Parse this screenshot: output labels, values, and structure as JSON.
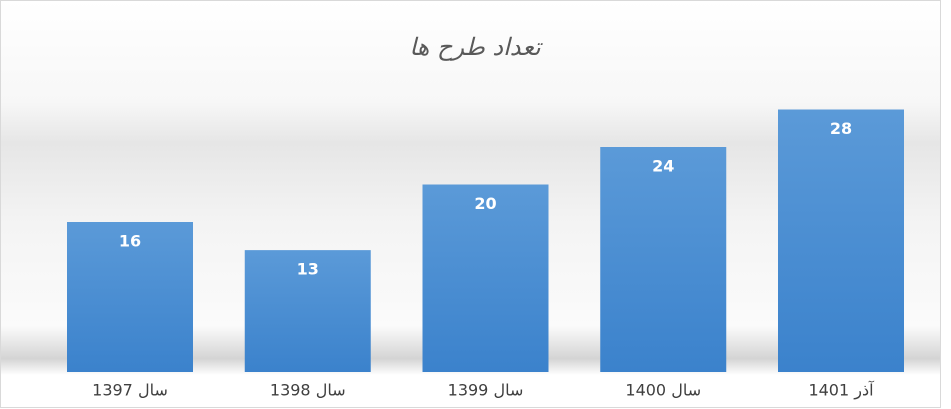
{
  "chart_data": {
    "type": "bar",
    "title": "تعداد طرح ها",
    "categories": [
      "سال 1397",
      "سال 1398",
      "سال 1399",
      "سال 1400",
      "آذر 1401"
    ],
    "values": [
      16,
      13,
      20,
      24,
      28
    ],
    "color": "#4a8fd4"
  }
}
